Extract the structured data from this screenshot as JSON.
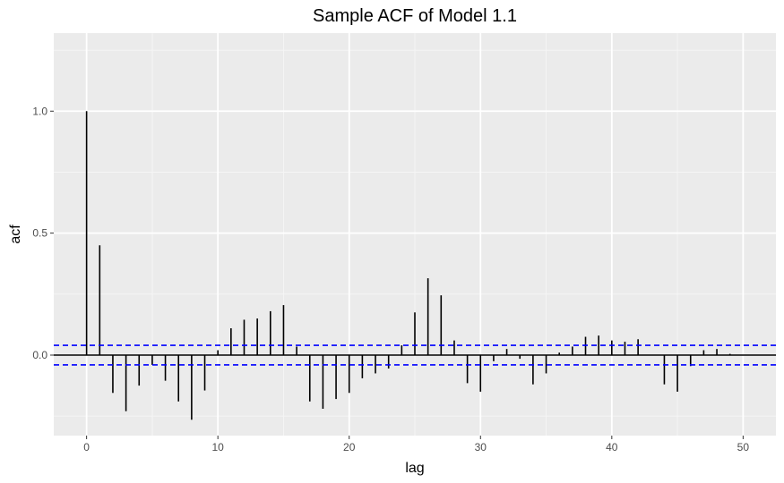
{
  "chart_data": {
    "type": "bar",
    "title": "Sample ACF of Model 1.1",
    "xlabel": "lag",
    "ylabel": "acf",
    "xlim": [
      -2.5,
      52.5
    ],
    "ylim": [
      -0.33,
      1.32
    ],
    "x_ticks": [
      0,
      10,
      20,
      30,
      40,
      50
    ],
    "y_ticks": [
      0.0,
      0.5,
      1.0
    ],
    "y_tick_labels": [
      "0.0",
      "0.5",
      "1.0"
    ],
    "grid": true,
    "confidence_bounds": [
      0.04,
      -0.04
    ],
    "lags": [
      0,
      1,
      2,
      3,
      4,
      5,
      6,
      7,
      8,
      9,
      10,
      11,
      12,
      13,
      14,
      15,
      16,
      17,
      18,
      19,
      20,
      21,
      22,
      23,
      24,
      25,
      26,
      27,
      28,
      29,
      30,
      31,
      32,
      33,
      34,
      35,
      36,
      37,
      38,
      39,
      40,
      41,
      42,
      43,
      44,
      45,
      46,
      47,
      48,
      49
    ],
    "values": [
      1.0,
      0.45,
      -0.155,
      -0.23,
      -0.125,
      -0.04,
      -0.105,
      -0.19,
      -0.265,
      -0.145,
      0.02,
      0.11,
      0.145,
      0.15,
      0.18,
      0.205,
      0.035,
      -0.19,
      -0.22,
      -0.18,
      -0.155,
      -0.095,
      -0.075,
      -0.055,
      0.04,
      0.175,
      0.315,
      0.245,
      0.06,
      -0.115,
      -0.15,
      -0.025,
      0.025,
      -0.015,
      -0.12,
      -0.075,
      0.01,
      0.035,
      0.075,
      0.08,
      0.06,
      0.055,
      0.065,
      0.0,
      -0.12,
      -0.15,
      -0.045,
      0.02,
      0.025,
      0.005
    ],
    "colors": {
      "panel": "#ebebeb",
      "grid_major": "#ffffff",
      "grid_minor": "#f5f5f5",
      "bars": "#000000",
      "confidence": "#0000ff",
      "tick_text": "#4d4d4d"
    }
  }
}
